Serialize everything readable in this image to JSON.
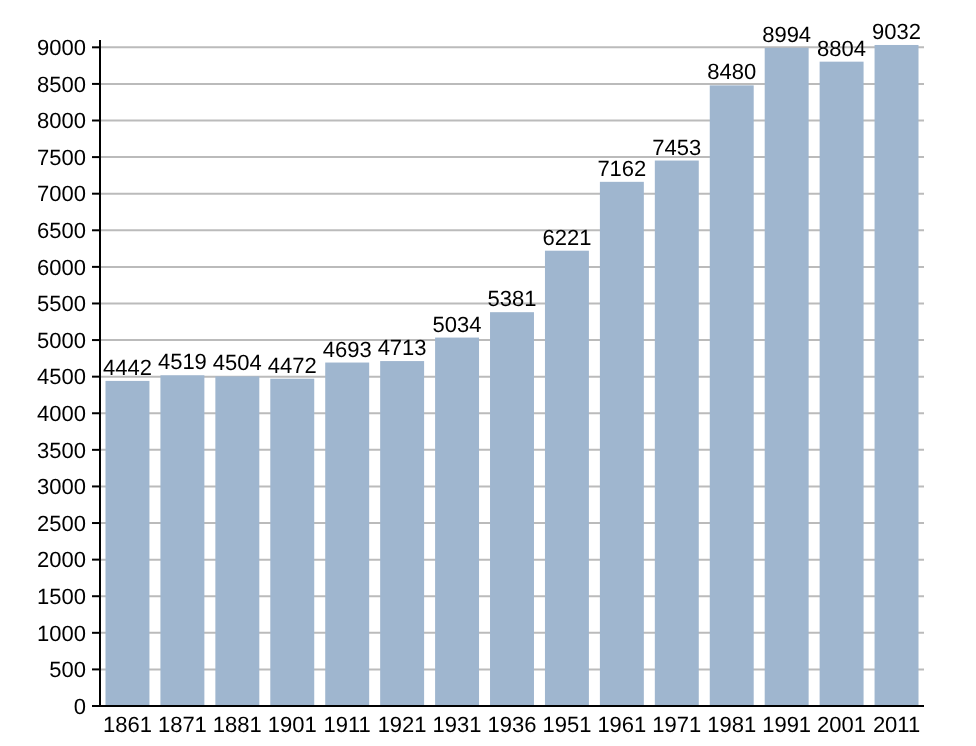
{
  "chart_data": {
    "type": "bar",
    "categories": [
      "1861",
      "1871",
      "1881",
      "1901",
      "1911",
      "1921",
      "1931",
      "1936",
      "1951",
      "1961",
      "1971",
      "1981",
      "1991",
      "2001",
      "2011"
    ],
    "values": [
      4442,
      4519,
      4504,
      4472,
      4693,
      4713,
      5034,
      5381,
      6221,
      7162,
      7453,
      8480,
      8994,
      8804,
      9032
    ],
    "color": "#9fb6cf",
    "ylim": [
      0,
      9100
    ],
    "yticks": [
      0,
      500,
      1000,
      1500,
      2000,
      2500,
      3000,
      3500,
      4000,
      4500,
      5000,
      5500,
      6000,
      6500,
      7000,
      7500,
      8000,
      8500,
      9000
    ],
    "grid": "y",
    "data_labels": true
  }
}
